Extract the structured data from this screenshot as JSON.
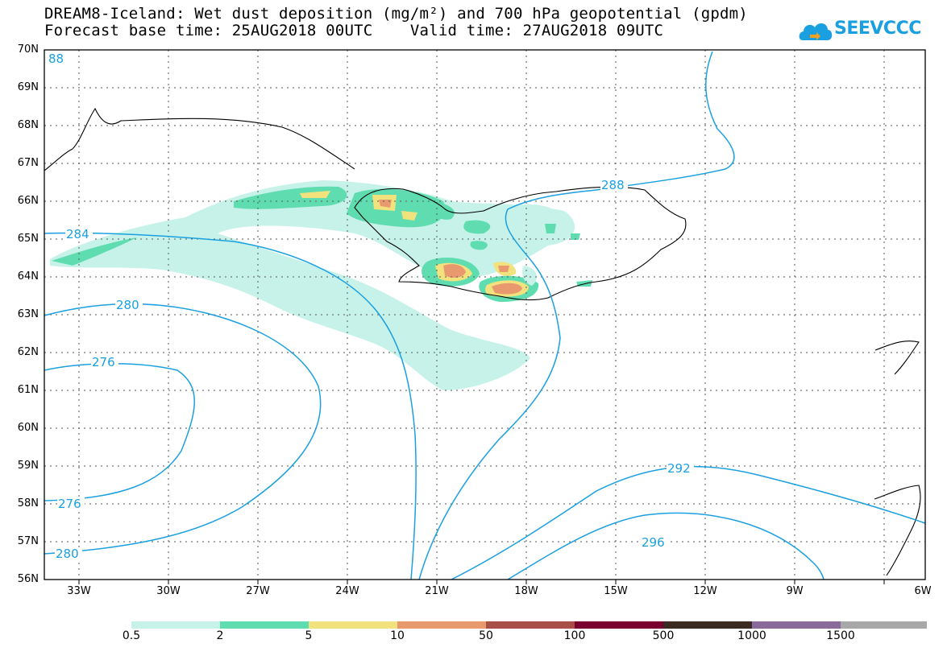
{
  "title": {
    "line1": "DREAM8-Iceland: Wet dust deposition (mg/m²) and 700 hPa geopotential (gpdm)",
    "line2": "Forecast base time: 25AUG2018 00UTC    Valid time: 27AUG2018 09UTC"
  },
  "logo": {
    "text": "SEEVCCC",
    "color": "#1aa0e0"
  },
  "map": {
    "lat_labels": [
      "70N",
      "69N",
      "68N",
      "67N",
      "66N",
      "65N",
      "64N",
      "63N",
      "62N",
      "61N",
      "60N",
      "59N",
      "58N",
      "57N",
      "56N"
    ],
    "lon_labels": [
      "33W",
      "30W",
      "27W",
      "24W",
      "21W",
      "18W",
      "15W",
      "12W",
      "9W",
      "6W"
    ],
    "contour_color": "#1aa0e0",
    "contour_labels": [
      "88",
      "284",
      "280",
      "276",
      "276",
      "280",
      "288",
      "292",
      "296"
    ]
  },
  "colorbar": {
    "colors": [
      "#c6f2ea",
      "#5fddb0",
      "#f2e27e",
      "#e89a6e",
      "#a84f48",
      "#7a0030",
      "#3a2a20",
      "#8a6a9a",
      "#a8a8a8"
    ],
    "labels": [
      "0.5",
      "2",
      "5",
      "10",
      "50",
      "100",
      "500",
      "1000",
      "1500"
    ]
  }
}
